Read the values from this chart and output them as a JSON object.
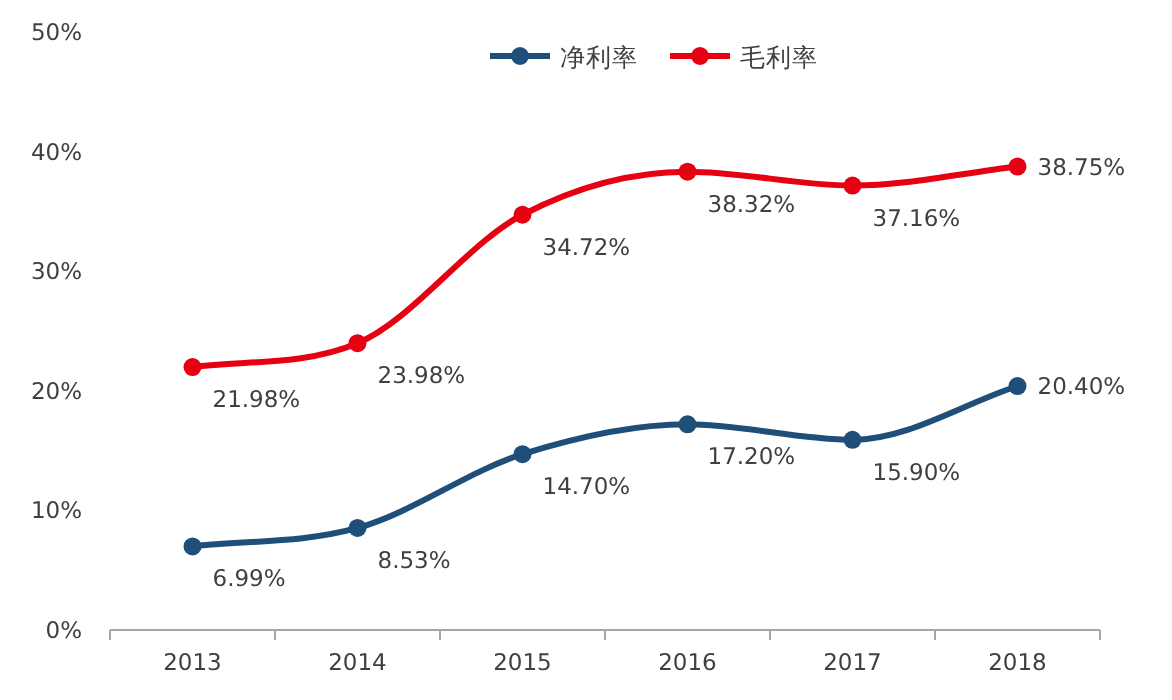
{
  "chart_data": {
    "type": "line",
    "categories": [
      "2013",
      "2014",
      "2015",
      "2016",
      "2017",
      "2018"
    ],
    "series": [
      {
        "name": "净利率",
        "color": "#1f4e79",
        "values": [
          6.99,
          8.53,
          14.7,
          17.2,
          15.9,
          20.4
        ],
        "value_labels": [
          "6.99%",
          "8.53%",
          "14.70%",
          "17.20%",
          "15.90%",
          "20.40%"
        ]
      },
      {
        "name": "毛利率",
        "color": "#e60012",
        "values": [
          21.98,
          23.98,
          34.72,
          38.32,
          37.16,
          38.75
        ],
        "value_labels": [
          "21.98%",
          "23.98%",
          "34.72%",
          "38.32%",
          "37.16%",
          "38.75%"
        ]
      }
    ],
    "ylim": [
      0,
      50
    ],
    "yticks": [
      {
        "value": 0,
        "label": "0%"
      },
      {
        "value": 10,
        "label": "10%"
      },
      {
        "value": 20,
        "label": "20%"
      },
      {
        "value": 30,
        "label": "30%"
      },
      {
        "value": 40,
        "label": "40%"
      },
      {
        "value": 50,
        "label": "50%"
      }
    ],
    "grid": false,
    "legend": "top",
    "marker": "circle",
    "line_style": "solid"
  }
}
